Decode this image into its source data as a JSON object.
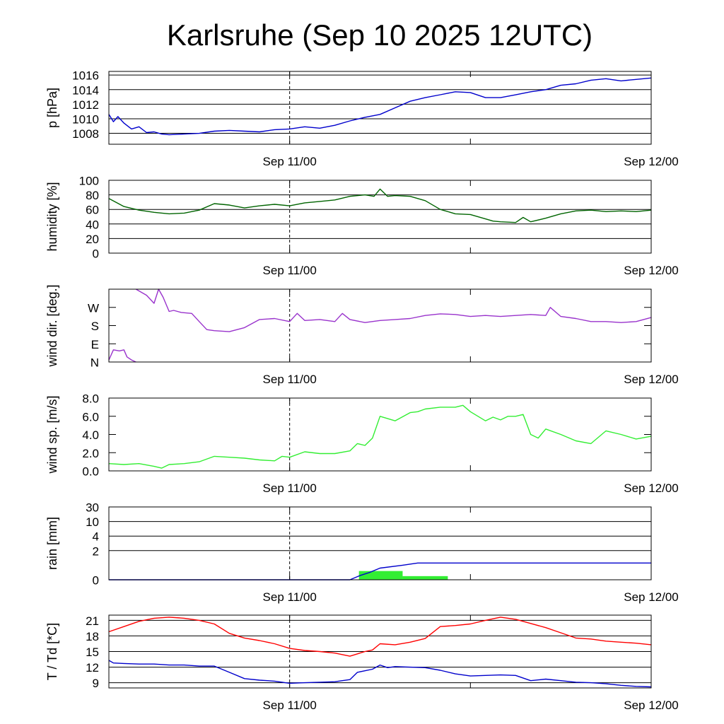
{
  "title": "Karlsruhe (Sep 10 2025 12UTC)",
  "colors": {
    "pressure": "#0000cc",
    "humidity": "#006400",
    "wind_dir": "#9933cc",
    "wind_speed": "#33ee33",
    "rain_total": "#0000cc",
    "rain_bar": "#33ee33",
    "temperature": "#ff0000",
    "dewpoint": "#0000cc",
    "grid": "#000000"
  },
  "chart_data": [
    {
      "type": "line",
      "id": "pressure",
      "ylabel": "p [hPa]",
      "x_unit": "hours since Sep 10 12UTC",
      "xlim": [
        0,
        36
      ],
      "xtick_labels": [
        {
          "x": 12,
          "label": "Sep 11/00"
        },
        {
          "x": 36,
          "label": "Sep 12/00"
        }
      ],
      "ylim": [
        1006.5,
        1016.5
      ],
      "yticks": [
        1008,
        1010,
        1012,
        1014,
        1016
      ],
      "ytick_labels": [
        "1008",
        "1010",
        "1012",
        "1014",
        "1016"
      ],
      "series": [
        {
          "name": "pressure",
          "color_key": "pressure",
          "x": [
            0,
            0.3,
            0.6,
            1,
            1.5,
            2,
            2.5,
            3,
            3.5,
            4,
            5,
            6,
            7,
            8,
            9,
            10,
            11,
            12,
            13,
            14,
            15,
            16,
            17,
            18,
            19,
            20,
            21,
            22,
            23,
            24,
            25,
            26,
            27,
            28,
            29,
            30,
            31,
            32,
            33,
            34,
            35,
            36
          ],
          "values": [
            1010.6,
            1009.6,
            1010.3,
            1009.4,
            1008.6,
            1008.9,
            1008.1,
            1008.2,
            1007.9,
            1007.8,
            1007.9,
            1008.0,
            1008.3,
            1008.4,
            1008.3,
            1008.2,
            1008.5,
            1008.6,
            1008.9,
            1008.7,
            1009.1,
            1009.7,
            1010.2,
            1010.6,
            1011.5,
            1012.4,
            1012.9,
            1013.3,
            1013.7,
            1013.6,
            1012.9,
            1012.9,
            1013.3,
            1013.7,
            1014.0,
            1014.6,
            1014.8,
            1015.3,
            1015.5,
            1015.2,
            1015.4,
            1015.6
          ]
        }
      ]
    },
    {
      "type": "line",
      "id": "humidity",
      "ylabel": "humidity [%]",
      "x_unit": "hours since Sep 10 12UTC",
      "xlim": [
        0,
        36
      ],
      "xtick_labels": [
        {
          "x": 12,
          "label": "Sep 11/00"
        },
        {
          "x": 36,
          "label": "Sep 12/00"
        }
      ],
      "ylim": [
        0,
        100
      ],
      "yticks": [
        0,
        20,
        40,
        60,
        80,
        100
      ],
      "ytick_labels": [
        "0",
        "20",
        "40",
        "60",
        "80",
        "100"
      ],
      "series": [
        {
          "name": "humidity",
          "color_key": "humidity",
          "x": [
            0,
            1,
            2,
            3,
            4,
            5,
            6,
            7,
            8,
            9,
            10,
            11,
            12,
            13,
            14,
            15,
            16,
            17,
            17.6,
            18,
            18.5,
            19,
            20,
            21,
            22,
            23,
            24,
            25,
            25.5,
            26,
            27,
            27.5,
            28,
            29,
            30,
            31,
            32,
            33,
            34,
            35,
            36
          ],
          "values": [
            75,
            64,
            59,
            56,
            54,
            55,
            59,
            68,
            66,
            62,
            65,
            67,
            65,
            69,
            71,
            73,
            78,
            80,
            78,
            88,
            78,
            79,
            78,
            72,
            60,
            54,
            53,
            47,
            44,
            43,
            42,
            49,
            43,
            48,
            54,
            58,
            59,
            57,
            58,
            57,
            59
          ]
        }
      ]
    },
    {
      "type": "line",
      "id": "wind_dir",
      "ylabel": "wind dir. [deg.]",
      "x_unit": "hours since Sep 10 12UTC",
      "xlim": [
        0,
        36
      ],
      "xtick_labels": [
        {
          "x": 12,
          "label": "Sep 11/00"
        },
        {
          "x": 36,
          "label": "Sep 12/00"
        }
      ],
      "ylim": [
        0,
        360
      ],
      "yticks": [
        0,
        90,
        180,
        270
      ],
      "ytick_labels": [
        "N",
        "E",
        "S",
        "W"
      ],
      "series": [
        {
          "name": "wind direction",
          "color_key": "wind_dir",
          "x": [
            1.8,
            2.5,
            3,
            3.3,
            3.6,
            4,
            4.3,
            4.8,
            5.5,
            6,
            6.5,
            7,
            8,
            9,
            10,
            11,
            12,
            12.5,
            13,
            14,
            15,
            15.5,
            16,
            17,
            18,
            19,
            20,
            21,
            22,
            23,
            24,
            25,
            26,
            27,
            28,
            29,
            29.3,
            30,
            31,
            32,
            33,
            34,
            35,
            36
          ],
          "values": [
            360,
            330,
            290,
            360,
            320,
            250,
            255,
            245,
            240,
            200,
            160,
            155,
            150,
            170,
            210,
            215,
            200,
            240,
            205,
            210,
            200,
            240,
            210,
            195,
            205,
            210,
            215,
            230,
            238,
            235,
            225,
            230,
            225,
            230,
            235,
            230,
            270,
            225,
            215,
            200,
            200,
            195,
            200,
            220
          ]
        },
        {
          "name": "wind direction (wrapped)",
          "color_key": "wind_dir",
          "x": [
            0,
            0.3,
            0.7,
            1,
            1.2,
            1.5,
            1.8
          ],
          "values": [
            10,
            60,
            55,
            60,
            25,
            10,
            0
          ]
        }
      ]
    },
    {
      "type": "line",
      "id": "wind_speed",
      "ylabel": "wind sp. [m/s]",
      "x_unit": "hours since Sep 10 12UTC",
      "xlim": [
        0,
        36
      ],
      "xtick_labels": [
        {
          "x": 12,
          "label": "Sep 11/00"
        },
        {
          "x": 36,
          "label": "Sep 12/00"
        }
      ],
      "ylim": [
        0,
        8
      ],
      "yticks": [
        0,
        2,
        4,
        6,
        8
      ],
      "ytick_labels": [
        "0.0",
        "2.0",
        "4.0",
        "6.0",
        "8.0"
      ],
      "series": [
        {
          "name": "wind speed",
          "color_key": "wind_speed",
          "x": [
            0,
            1,
            2,
            3,
            3.5,
            4,
            5,
            6,
            7,
            8,
            9,
            10,
            11,
            11.5,
            12,
            13,
            14,
            15,
            16,
            16.5,
            17,
            17.5,
            18,
            19,
            20,
            20.5,
            21,
            22,
            23,
            23.5,
            24,
            25,
            25.5,
            26,
            26.5,
            27,
            27.5,
            28,
            28.5,
            29,
            30,
            31,
            32,
            33,
            34,
            35,
            36
          ],
          "values": [
            0.8,
            0.7,
            0.8,
            0.5,
            0.3,
            0.7,
            0.8,
            1.0,
            1.6,
            1.5,
            1.4,
            1.2,
            1.1,
            1.6,
            1.5,
            2.1,
            1.9,
            1.9,
            2.2,
            3.0,
            2.8,
            3.6,
            6.0,
            5.5,
            6.4,
            6.5,
            6.8,
            7.0,
            7.0,
            7.2,
            6.5,
            5.5,
            5.9,
            5.6,
            6.0,
            6.0,
            6.2,
            4.0,
            3.6,
            4.6,
            4.0,
            3.3,
            3.0,
            4.4,
            4.0,
            3.5,
            3.8
          ]
        }
      ]
    },
    {
      "type": "line",
      "id": "rain",
      "ylabel": "rain [mm]",
      "x_unit": "hours since Sep 10 12UTC",
      "xlim": [
        0,
        36
      ],
      "xtick_labels": [
        {
          "x": 12,
          "label": "Sep 11/00"
        },
        {
          "x": 36,
          "label": "Sep 12/00"
        }
      ],
      "ylim": [
        0,
        30
      ],
      "scale": "square-root-like (ticks 0,1,2,4,10,30 non-linear)",
      "yticks": [
        0,
        2,
        4,
        10,
        30
      ],
      "ytick_labels": [
        "0",
        "2",
        "4",
        "10",
        "30"
      ],
      "series": [
        {
          "name": "rain total",
          "color_key": "rain_total",
          "x": [
            0,
            16.0,
            16.7,
            17.3,
            18.0,
            19.5,
            20.5,
            36
          ],
          "values": [
            0,
            0,
            0.3,
            0.5,
            0.8,
            1.0,
            1.15,
            1.15
          ]
        }
      ],
      "bars": [
        {
          "x0": 16.6,
          "x1": 19.5,
          "value": 0.6
        },
        {
          "x0": 19.5,
          "x1": 22.5,
          "value": 0.25
        }
      ]
    },
    {
      "type": "line",
      "id": "temperature",
      "ylabel": "T / Td [*C]",
      "x_unit": "hours since Sep 10 12UTC",
      "xlim": [
        0,
        36
      ],
      "xtick_labels": [
        {
          "x": 12,
          "label": "Sep 11/00"
        },
        {
          "x": 36,
          "label": "Sep 12/00"
        }
      ],
      "ylim": [
        8,
        22
      ],
      "yticks": [
        9,
        12,
        15,
        18,
        21
      ],
      "ytick_labels": [
        "9",
        "12",
        "15",
        "18",
        "21"
      ],
      "series": [
        {
          "name": "T",
          "color_key": "temperature",
          "x": [
            0,
            1,
            2,
            3,
            4,
            5,
            6,
            7,
            8,
            9,
            10,
            11,
            12,
            13,
            14,
            15,
            16,
            17,
            17.5,
            18,
            19,
            20,
            21,
            22,
            23,
            24,
            25,
            26,
            27,
            28,
            29,
            30,
            31,
            32,
            33,
            34,
            35,
            36
          ],
          "values": [
            18.8,
            19.8,
            20.8,
            21.4,
            21.6,
            21.4,
            21.0,
            20.3,
            18.5,
            17.6,
            17.1,
            16.5,
            15.6,
            15.2,
            15.0,
            14.7,
            14.1,
            15.0,
            15.3,
            16.5,
            16.3,
            16.8,
            17.5,
            19.8,
            20.0,
            20.3,
            21.0,
            21.6,
            21.2,
            20.4,
            19.6,
            18.6,
            17.6,
            17.4,
            17.0,
            16.8,
            16.6,
            16.3
          ]
        },
        {
          "name": "Td",
          "color_key": "dewpoint",
          "x": [
            0,
            0.3,
            1,
            2,
            3,
            4,
            5,
            6,
            7,
            8,
            9,
            10,
            11,
            12,
            13,
            14,
            15,
            16,
            16.5,
            17,
            17.5,
            18,
            18.5,
            19,
            20,
            21,
            22,
            23,
            24,
            25,
            26,
            27,
            28,
            29,
            30,
            31,
            32,
            33,
            34,
            35,
            36
          ],
          "values": [
            13.3,
            12.8,
            12.7,
            12.6,
            12.6,
            12.4,
            12.4,
            12.2,
            12.2,
            11.0,
            9.8,
            9.5,
            9.3,
            8.9,
            9.0,
            9.1,
            9.2,
            9.6,
            11.0,
            11.3,
            11.6,
            12.4,
            11.9,
            12.1,
            12.0,
            11.9,
            11.4,
            10.7,
            10.3,
            10.4,
            10.5,
            10.4,
            9.4,
            9.7,
            9.4,
            9.1,
            9.0,
            8.8,
            8.5,
            8.3,
            8.2
          ]
        }
      ]
    }
  ]
}
